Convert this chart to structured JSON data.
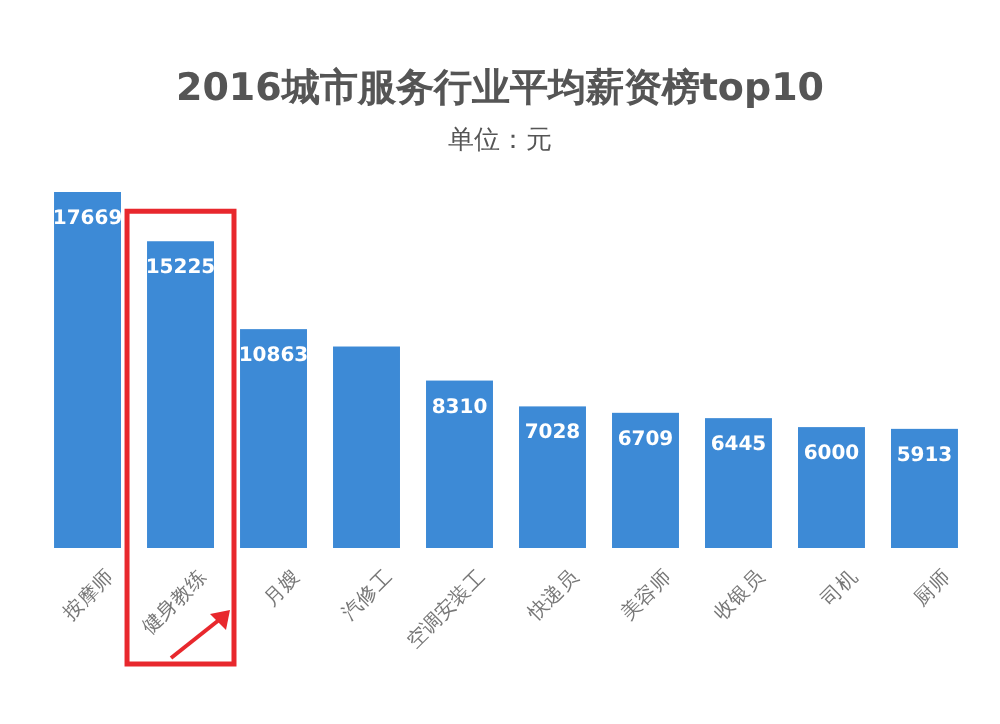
{
  "chart_data": {
    "type": "bar",
    "title": "2016城市服务行业平均薪资榜top10",
    "subtitle": "单位：元",
    "categories": [
      "按摩师",
      "健身教练",
      "月嫂",
      "汽修工",
      "空调安装工",
      "快递员",
      "美容师",
      "收银员",
      "司机",
      "厨师"
    ],
    "values": [
      17669,
      15225,
      10863,
      10000,
      8310,
      7028,
      6709,
      6445,
      6000,
      5913
    ],
    "value_labels": [
      "17669",
      "15225",
      "10863",
      null,
      "8310",
      "7028",
      "6709",
      "6445",
      "6000",
      "5913"
    ],
    "color": "#3d8ad6"
  }
}
